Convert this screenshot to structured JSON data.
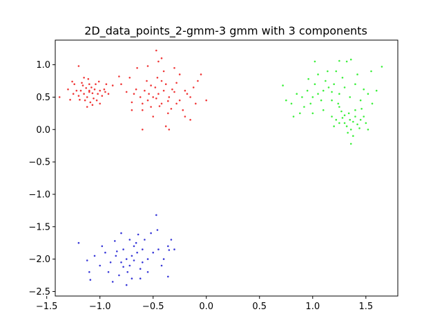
{
  "chart_data": {
    "type": "scatter",
    "title": "2D_data_points_2-gmm-3 gmm with 3 components",
    "xlabel": "",
    "ylabel": "",
    "xlim": [
      -1.42,
      1.8
    ],
    "ylim": [
      -2.57,
      1.38
    ],
    "x_ticks": [
      -1.5,
      -1.0,
      -0.5,
      0.0,
      0.5,
      1.0,
      1.5
    ],
    "x_tick_labels": [
      "−1.5",
      "−1.0",
      "−0.5",
      "0.0",
      "0.5",
      "1.0",
      "1.5"
    ],
    "y_ticks": [
      -2.5,
      -2.0,
      -1.5,
      -1.0,
      -0.5,
      0.0,
      0.5,
      1.0
    ],
    "y_tick_labels": [
      "−2.5",
      "−2.0",
      "−1.5",
      "−1.0",
      "−0.5",
      "0.0",
      "0.5",
      "1.0"
    ],
    "grid": false,
    "colors": {
      "red": "#f03838",
      "green": "#3cf03c",
      "blue": "#3838d8"
    },
    "series": [
      {
        "color": "#f03838",
        "points": [
          [
            -1.1,
            0.58
          ],
          [
            -1.15,
            0.55
          ],
          [
            -1.05,
            0.62
          ],
          [
            -1.12,
            0.5
          ],
          [
            -1.08,
            0.65
          ],
          [
            -1.18,
            0.6
          ],
          [
            -1.02,
            0.55
          ],
          [
            -1.1,
            0.7
          ],
          [
            -1.14,
            0.45
          ],
          [
            -1.06,
            0.48
          ],
          [
            -1.22,
            0.6
          ],
          [
            -1.0,
            0.6
          ],
          [
            -1.16,
            0.68
          ],
          [
            -1.04,
            0.7
          ],
          [
            -1.2,
            0.52
          ],
          [
            -1.09,
            0.42
          ],
          [
            -1.13,
            0.64
          ],
          [
            -0.98,
            0.52
          ],
          [
            -1.25,
            0.55
          ],
          [
            -0.96,
            0.62
          ],
          [
            -1.17,
            0.72
          ],
          [
            -1.03,
            0.45
          ],
          [
            -1.11,
            0.78
          ],
          [
            -1.07,
            0.38
          ],
          [
            -1.24,
            0.7
          ],
          [
            -0.95,
            0.58
          ],
          [
            -1.19,
            0.46
          ],
          [
            -1.01,
            0.74
          ],
          [
            -1.3,
            0.62
          ],
          [
            -0.92,
            0.55
          ],
          [
            -1.2,
            0.98
          ],
          [
            -1.38,
            0.5
          ],
          [
            -1.28,
            0.46
          ],
          [
            -1.26,
            0.74
          ],
          [
            -0.94,
            0.7
          ],
          [
            -1.12,
            0.35
          ],
          [
            -1.0,
            0.4
          ],
          [
            -1.15,
            0.8
          ],
          [
            -1.1,
            0.6
          ],
          [
            -1.07,
            0.56
          ],
          [
            -0.45,
            0.55
          ],
          [
            -0.5,
            0.5
          ],
          [
            -0.4,
            0.6
          ],
          [
            -0.55,
            0.45
          ],
          [
            -0.35,
            0.5
          ],
          [
            -0.48,
            0.65
          ],
          [
            -0.42,
            0.4
          ],
          [
            -0.58,
            0.6
          ],
          [
            -0.3,
            0.58
          ],
          [
            -0.52,
            0.35
          ],
          [
            -0.38,
            0.7
          ],
          [
            -0.62,
            0.5
          ],
          [
            -0.25,
            0.45
          ],
          [
            -0.46,
            0.8
          ],
          [
            -0.33,
            0.32
          ],
          [
            -0.66,
            0.62
          ],
          [
            -0.2,
            0.6
          ],
          [
            -0.56,
            0.75
          ],
          [
            -0.28,
            0.72
          ],
          [
            -0.7,
            0.42
          ],
          [
            -0.15,
            0.5
          ],
          [
            -0.5,
            0.2
          ],
          [
            -0.4,
            0.9
          ],
          [
            -0.75,
            0.58
          ],
          [
            -0.12,
            0.65
          ],
          [
            -0.6,
            0.3
          ],
          [
            -0.22,
            0.3
          ],
          [
            -0.8,
            0.7
          ],
          [
            -0.1,
            0.4
          ],
          [
            -0.45,
            1.05
          ],
          [
            -0.47,
            1.22
          ],
          [
            -0.42,
            1.1
          ],
          [
            -0.55,
            0.98
          ],
          [
            -0.65,
            0.95
          ],
          [
            -0.38,
            0.05
          ],
          [
            -0.35,
            0.0
          ],
          [
            -0.6,
            0.0
          ],
          [
            -0.2,
            0.2
          ],
          [
            -0.15,
            0.15
          ],
          [
            -0.05,
            0.85
          ],
          [
            -0.08,
            0.75
          ],
          [
            0.0,
            0.45
          ],
          [
            -0.82,
            0.82
          ],
          [
            -0.88,
            0.68
          ],
          [
            -0.72,
            0.8
          ],
          [
            -0.3,
            0.95
          ],
          [
            -0.25,
            0.85
          ],
          [
            -0.36,
            0.44
          ],
          [
            -0.44,
            0.36
          ],
          [
            -0.54,
            0.55
          ],
          [
            -0.32,
            0.62
          ],
          [
            -0.47,
            0.48
          ],
          [
            -0.68,
            0.55
          ],
          [
            -0.18,
            0.55
          ],
          [
            -0.52,
            0.68
          ],
          [
            -0.28,
            0.4
          ],
          [
            -0.6,
            0.4
          ],
          [
            -0.42,
            0.75
          ],
          [
            -0.36,
            0.25
          ],
          [
            -0.7,
            0.3
          ]
        ]
      },
      {
        "color": "#3cf03c",
        "points": [
          [
            1.35,
            0.15
          ],
          [
            1.3,
            0.1
          ],
          [
            1.4,
            0.2
          ],
          [
            1.32,
            0.05
          ],
          [
            1.38,
            0.12
          ],
          [
            1.28,
            0.18
          ],
          [
            1.42,
            0.08
          ],
          [
            1.34,
            0.25
          ],
          [
            1.25,
            0.1
          ],
          [
            1.45,
            0.15
          ],
          [
            1.36,
            0.0
          ],
          [
            1.3,
            0.22
          ],
          [
            1.4,
            0.3
          ],
          [
            1.22,
            0.15
          ],
          [
            1.48,
            0.2
          ],
          [
            1.33,
            -0.05
          ],
          [
            1.27,
            0.28
          ],
          [
            1.44,
            0.02
          ],
          [
            1.2,
            0.05
          ],
          [
            1.5,
            0.1
          ],
          [
            1.38,
            -0.1
          ],
          [
            1.25,
            0.35
          ],
          [
            1.46,
            0.32
          ],
          [
            1.18,
            0.2
          ],
          [
            1.52,
            0.0
          ],
          [
            1.36,
            -0.22
          ],
          [
            1.1,
            0.6
          ],
          [
            1.05,
            0.55
          ],
          [
            1.15,
            0.65
          ],
          [
            1.0,
            0.5
          ],
          [
            1.2,
            0.7
          ],
          [
            1.08,
            0.45
          ],
          [
            0.95,
            0.6
          ],
          [
            1.25,
            0.55
          ],
          [
            1.12,
            0.75
          ],
          [
            0.98,
            0.4
          ],
          [
            1.3,
            0.65
          ],
          [
            1.02,
            0.7
          ],
          [
            0.9,
            0.5
          ],
          [
            1.18,
            0.45
          ],
          [
            1.28,
            0.8
          ],
          [
            0.92,
            0.35
          ],
          [
            1.35,
            0.5
          ],
          [
            1.05,
            0.85
          ],
          [
            0.85,
            0.55
          ],
          [
            1.4,
            0.7
          ],
          [
            0.88,
            0.25
          ],
          [
            1.22,
            0.9
          ],
          [
            1.45,
            0.45
          ],
          [
            0.8,
            0.4
          ],
          [
            1.32,
            1.05
          ],
          [
            1.36,
            1.08
          ],
          [
            1.25,
            1.06
          ],
          [
            1.02,
            1.05
          ],
          [
            1.65,
            0.97
          ],
          [
            1.55,
            0.9
          ],
          [
            0.72,
            0.68
          ],
          [
            0.75,
            0.45
          ],
          [
            0.82,
            0.2
          ],
          [
            1.52,
            0.55
          ],
          [
            1.56,
            0.4
          ],
          [
            1.48,
            0.62
          ],
          [
            1.1,
            0.3
          ],
          [
            1.0,
            0.25
          ],
          [
            1.14,
            0.9
          ],
          [
            0.96,
            0.78
          ],
          [
            1.42,
            0.85
          ],
          [
            1.6,
            0.6
          ],
          [
            1.18,
            0.58
          ],
          [
            1.24,
            0.4
          ]
        ]
      },
      {
        "color": "#3838d8",
        "points": [
          [
            -0.7,
            -1.95
          ],
          [
            -0.75,
            -2.0
          ],
          [
            -0.65,
            -1.9
          ],
          [
            -0.8,
            -2.05
          ],
          [
            -0.6,
            -1.85
          ],
          [
            -0.72,
            -2.1
          ],
          [
            -0.68,
            -1.8
          ],
          [
            -0.85,
            -1.95
          ],
          [
            -0.55,
            -2.0
          ],
          [
            -0.78,
            -1.85
          ],
          [
            -0.62,
            -2.15
          ],
          [
            -0.9,
            -2.05
          ],
          [
            -0.5,
            -1.9
          ],
          [
            -0.74,
            -2.2
          ],
          [
            -0.66,
            -1.75
          ],
          [
            -0.95,
            -1.9
          ],
          [
            -0.45,
            -1.85
          ],
          [
            -0.82,
            -2.25
          ],
          [
            -0.58,
            -1.7
          ],
          [
            -1.0,
            -2.1
          ],
          [
            -0.4,
            -2.0
          ],
          [
            -0.7,
            -2.3
          ],
          [
            -0.52,
            -1.6
          ],
          [
            -1.05,
            -1.95
          ],
          [
            -0.36,
            -1.8
          ],
          [
            -0.88,
            -2.35
          ],
          [
            -0.46,
            -1.55
          ],
          [
            -1.1,
            -2.2
          ],
          [
            -0.33,
            -1.7
          ],
          [
            -0.8,
            -1.6
          ],
          [
            -1.2,
            -1.75
          ],
          [
            -0.47,
            -1.32
          ],
          [
            -0.35,
            -1.86
          ],
          [
            -0.3,
            -1.85
          ],
          [
            -0.36,
            -2.27
          ],
          [
            -1.09,
            -2.32
          ],
          [
            -0.75,
            -2.4
          ],
          [
            -0.62,
            -2.3
          ],
          [
            -0.98,
            -1.8
          ],
          [
            -0.55,
            -2.2
          ],
          [
            -0.42,
            -2.1
          ],
          [
            -1.12,
            -2.02
          ],
          [
            -0.86,
            -1.72
          ],
          [
            -0.64,
            -1.62
          ],
          [
            -0.92,
            -2.2
          ],
          [
            -0.72,
            -1.7
          ],
          [
            -0.6,
            -2.05
          ],
          [
            -0.78,
            -2.12
          ],
          [
            -0.68,
            -2.02
          ],
          [
            -0.84,
            -1.88
          ]
        ]
      }
    ]
  }
}
